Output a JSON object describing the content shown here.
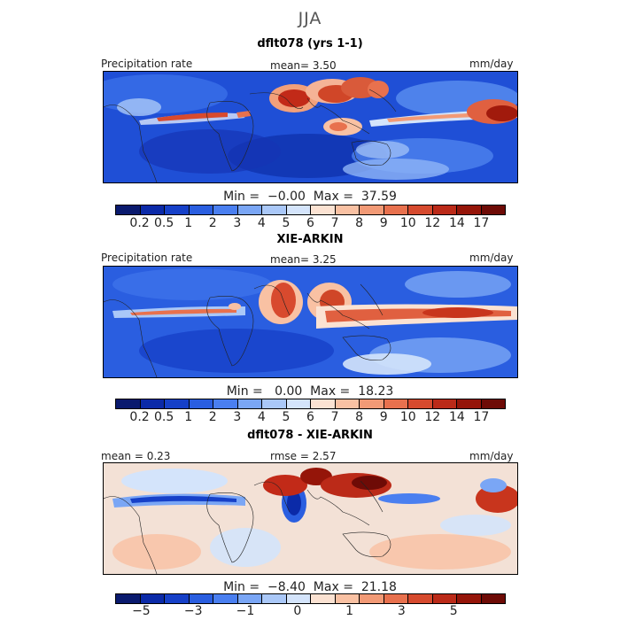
{
  "season": "JJA",
  "colors": {
    "precip_scale": [
      "#0a1a6e",
      "#0b2aa8",
      "#1640c8",
      "#2a5ee0",
      "#4a7ff0",
      "#7aa6f5",
      "#aac8f8",
      "#d4e4fb",
      "#fbe2d2",
      "#f9c1a3",
      "#f29a76",
      "#e8714e",
      "#d64a2e",
      "#bb2a18",
      "#951509",
      "#6e0b06"
    ],
    "diff_scale": [
      "#0a1a6e",
      "#0b2aa8",
      "#1640c8",
      "#2a5ee0",
      "#4a7ff0",
      "#7aa6f5",
      "#aac8f8",
      "#d4e4fb",
      "#fbe2d2",
      "#f9c1a3",
      "#f29a76",
      "#e8714e",
      "#d64a2e",
      "#bb2a18",
      "#951509",
      "#6e0b06"
    ]
  },
  "panels": [
    {
      "title": "dflt078 (yrs 1-1)",
      "left_label": "Precipitation rate",
      "center_label": "mean=   3.50",
      "units": "mm/day",
      "min_max": "Min =  −0.00  Max =  37.59",
      "colorbar_ticks": [
        "0.2",
        "0.5",
        "1",
        "2",
        "3",
        "4",
        "5",
        "6",
        "7",
        "8",
        "9",
        "10",
        "12",
        "14",
        "17"
      ],
      "field_style": "model"
    },
    {
      "title": "XIE-ARKIN",
      "left_label": "Precipitation rate",
      "center_label": "mean=   3.25",
      "units": "mm/day",
      "min_max": "Min =   0.00  Max =  18.23",
      "colorbar_ticks": [
        "0.2",
        "0.5",
        "1",
        "2",
        "3",
        "4",
        "5",
        "6",
        "7",
        "8",
        "9",
        "10",
        "12",
        "14",
        "17"
      ],
      "field_style": "obs"
    },
    {
      "title": "dflt078 - XIE-ARKIN",
      "left_label": "mean =   0.23",
      "center_label": "rmse =   2.57",
      "units": "mm/day",
      "min_max": "Min =  −8.40  Max =  21.18",
      "colorbar_ticks": [
        "−5",
        "",
        "−3",
        "",
        "−1",
        "",
        "0",
        "",
        "1",
        "",
        "3",
        "",
        "5",
        ""
      ],
      "field_style": "diff"
    }
  ]
}
